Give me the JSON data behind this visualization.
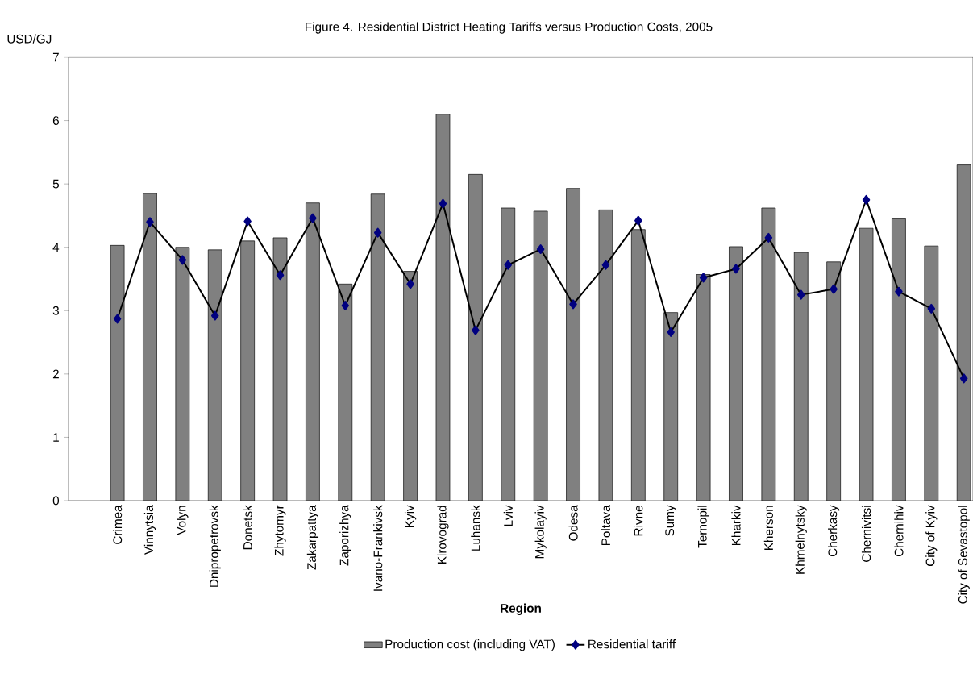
{
  "chart_data": {
    "type": "bar",
    "title": "Figure 4. Residential District Heating Tariffs versus Production Costs, 2005",
    "xlabel": "Region",
    "ylabel": "USD/GJ",
    "categories": [
      null,
      "Crimea",
      "Vinnytsia",
      "Volyn",
      "Dnipropetrovsk",
      "Donetsk",
      "Zhytomyr",
      "Zakarpattya",
      "Zaporizhya",
      "Ivano-Frankivsk",
      "Kyiv",
      "Kirovograd",
      "Luhansk",
      "Lviv",
      "Mykolayiv",
      "Odesa",
      "Poltava",
      "Rivne",
      "Sumy",
      "Ternopil",
      "Kharkiv",
      "Kherson",
      "Khmelnytsky",
      "Cherkasy",
      "Chernivitsi",
      "Chernihiv",
      "City of Kyiv",
      "City of Sevastopol"
    ],
    "series": [
      {
        "name": "Production cost (including VAT)",
        "color": "#808080",
        "values": [
          null,
          4.03,
          4.85,
          4.0,
          3.96,
          4.1,
          4.15,
          4.7,
          3.42,
          4.84,
          3.62,
          6.1,
          5.15,
          4.62,
          4.57,
          4.93,
          4.59,
          4.28,
          2.97,
          3.57,
          4.01,
          4.62,
          3.92,
          3.77,
          4.3,
          4.45,
          4.02,
          5.3
        ]
      },
      {
        "name": "Residential tariff",
        "type": "line",
        "color": "#000080",
        "marker": "diamond",
        "values": [
          null,
          2.87,
          4.4,
          3.8,
          2.92,
          4.41,
          3.56,
          4.46,
          3.08,
          4.23,
          3.42,
          4.69,
          2.69,
          3.72,
          3.97,
          3.1,
          3.72,
          4.42,
          2.66,
          3.52,
          3.66,
          4.15,
          3.25,
          3.34,
          4.75,
          3.3,
          3.03,
          1.93
        ]
      }
    ],
    "ylim": [
      0,
      7
    ],
    "yticks": [
      0,
      1,
      2,
      3,
      4,
      5,
      6,
      7
    ],
    "legend": "bottom"
  }
}
